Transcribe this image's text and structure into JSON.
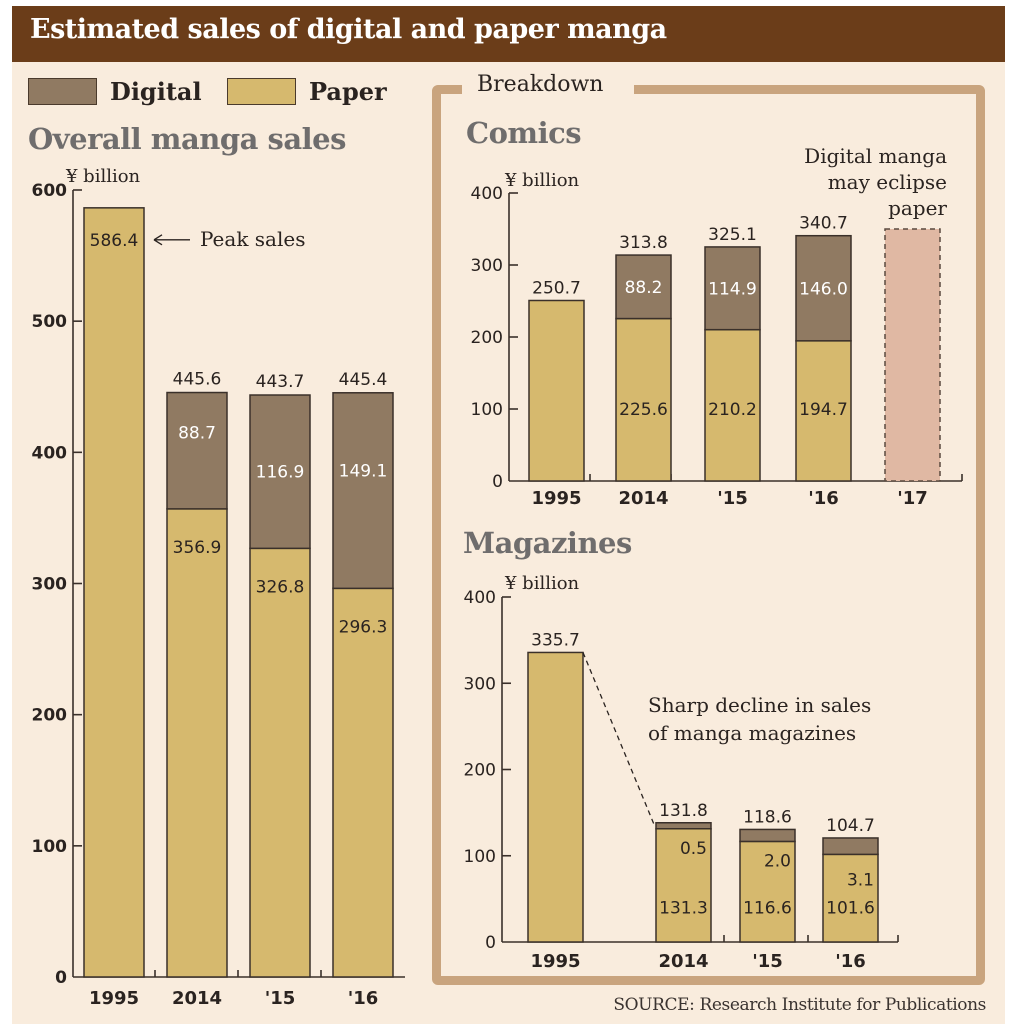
{
  "title": "Estimated sales of digital and paper manga",
  "legend": [
    {
      "label": "Digital",
      "color": "#907a62"
    },
    {
      "label": "Paper",
      "color": "#d6b96e"
    }
  ],
  "colors": {
    "digital": "#907a62",
    "paper": "#d6b96e",
    "projection": "#e0b8a3",
    "title_bar": "#6b3d19",
    "background": "#f9ecdd",
    "box_border": "#c9a47e"
  },
  "breakdown_label": "Breakdown",
  "source": "SOURCE: Research Institute for Publications",
  "chart_data": [
    {
      "id": "overall",
      "type": "bar",
      "stacked": true,
      "title": "Overall manga sales",
      "ylabel": "¥ billion",
      "xlabel": "",
      "ylim": [
        0,
        600
      ],
      "yticks": [
        0,
        100,
        200,
        300,
        400,
        500,
        600
      ],
      "categories": [
        "1995",
        "2014",
        "'15",
        "'16"
      ],
      "series": [
        {
          "name": "Paper",
          "values": [
            586.4,
            356.9,
            326.8,
            296.3
          ]
        },
        {
          "name": "Digital",
          "values": [
            0,
            88.7,
            116.9,
            149.1
          ]
        }
      ],
      "totals": [
        586.4,
        445.6,
        443.7,
        445.4
      ],
      "annotations": [
        {
          "text": "Peak sales",
          "target": "1995",
          "arrow": "left"
        }
      ]
    },
    {
      "id": "comics",
      "type": "bar",
      "stacked": true,
      "title": "Comics",
      "ylabel": "¥ billion",
      "xlabel": "",
      "ylim": [
        0,
        400
      ],
      "yticks": [
        0,
        100,
        200,
        300,
        400
      ],
      "categories": [
        "1995",
        "2014",
        "'15",
        "'16",
        "'17"
      ],
      "series": [
        {
          "name": "Paper",
          "values": [
            250.7,
            225.6,
            210.2,
            194.7,
            null
          ]
        },
        {
          "name": "Digital",
          "values": [
            0,
            88.2,
            114.9,
            146.0,
            null
          ]
        }
      ],
      "totals": [
        250.7,
        313.8,
        325.1,
        340.7,
        null
      ],
      "projection": {
        "category": "'17",
        "approx_value": 350,
        "style": "dashed"
      },
      "annotations": [
        {
          "text": [
            "Digital manga",
            "may eclipse",
            "paper"
          ],
          "target": "'17"
        }
      ]
    },
    {
      "id": "magazines",
      "type": "bar",
      "stacked": true,
      "title": "Magazines",
      "ylabel": "¥ billion",
      "xlabel": "",
      "ylim": [
        0,
        400
      ],
      "yticks": [
        0,
        100,
        200,
        300,
        400
      ],
      "categories": [
        "1995",
        "2014",
        "'15",
        "'16"
      ],
      "series": [
        {
          "name": "Paper",
          "values": [
            335.7,
            131.3,
            116.6,
            101.6
          ]
        },
        {
          "name": "Digital",
          "values": [
            0,
            0.5,
            2.0,
            3.1
          ]
        }
      ],
      "totals": [
        335.7,
        131.8,
        118.6,
        104.7
      ],
      "annotations": [
        {
          "text": [
            "Sharp decline in sales",
            "of manga magazines"
          ],
          "from": "1995",
          "to": "2014",
          "line": "dashed"
        }
      ]
    }
  ]
}
